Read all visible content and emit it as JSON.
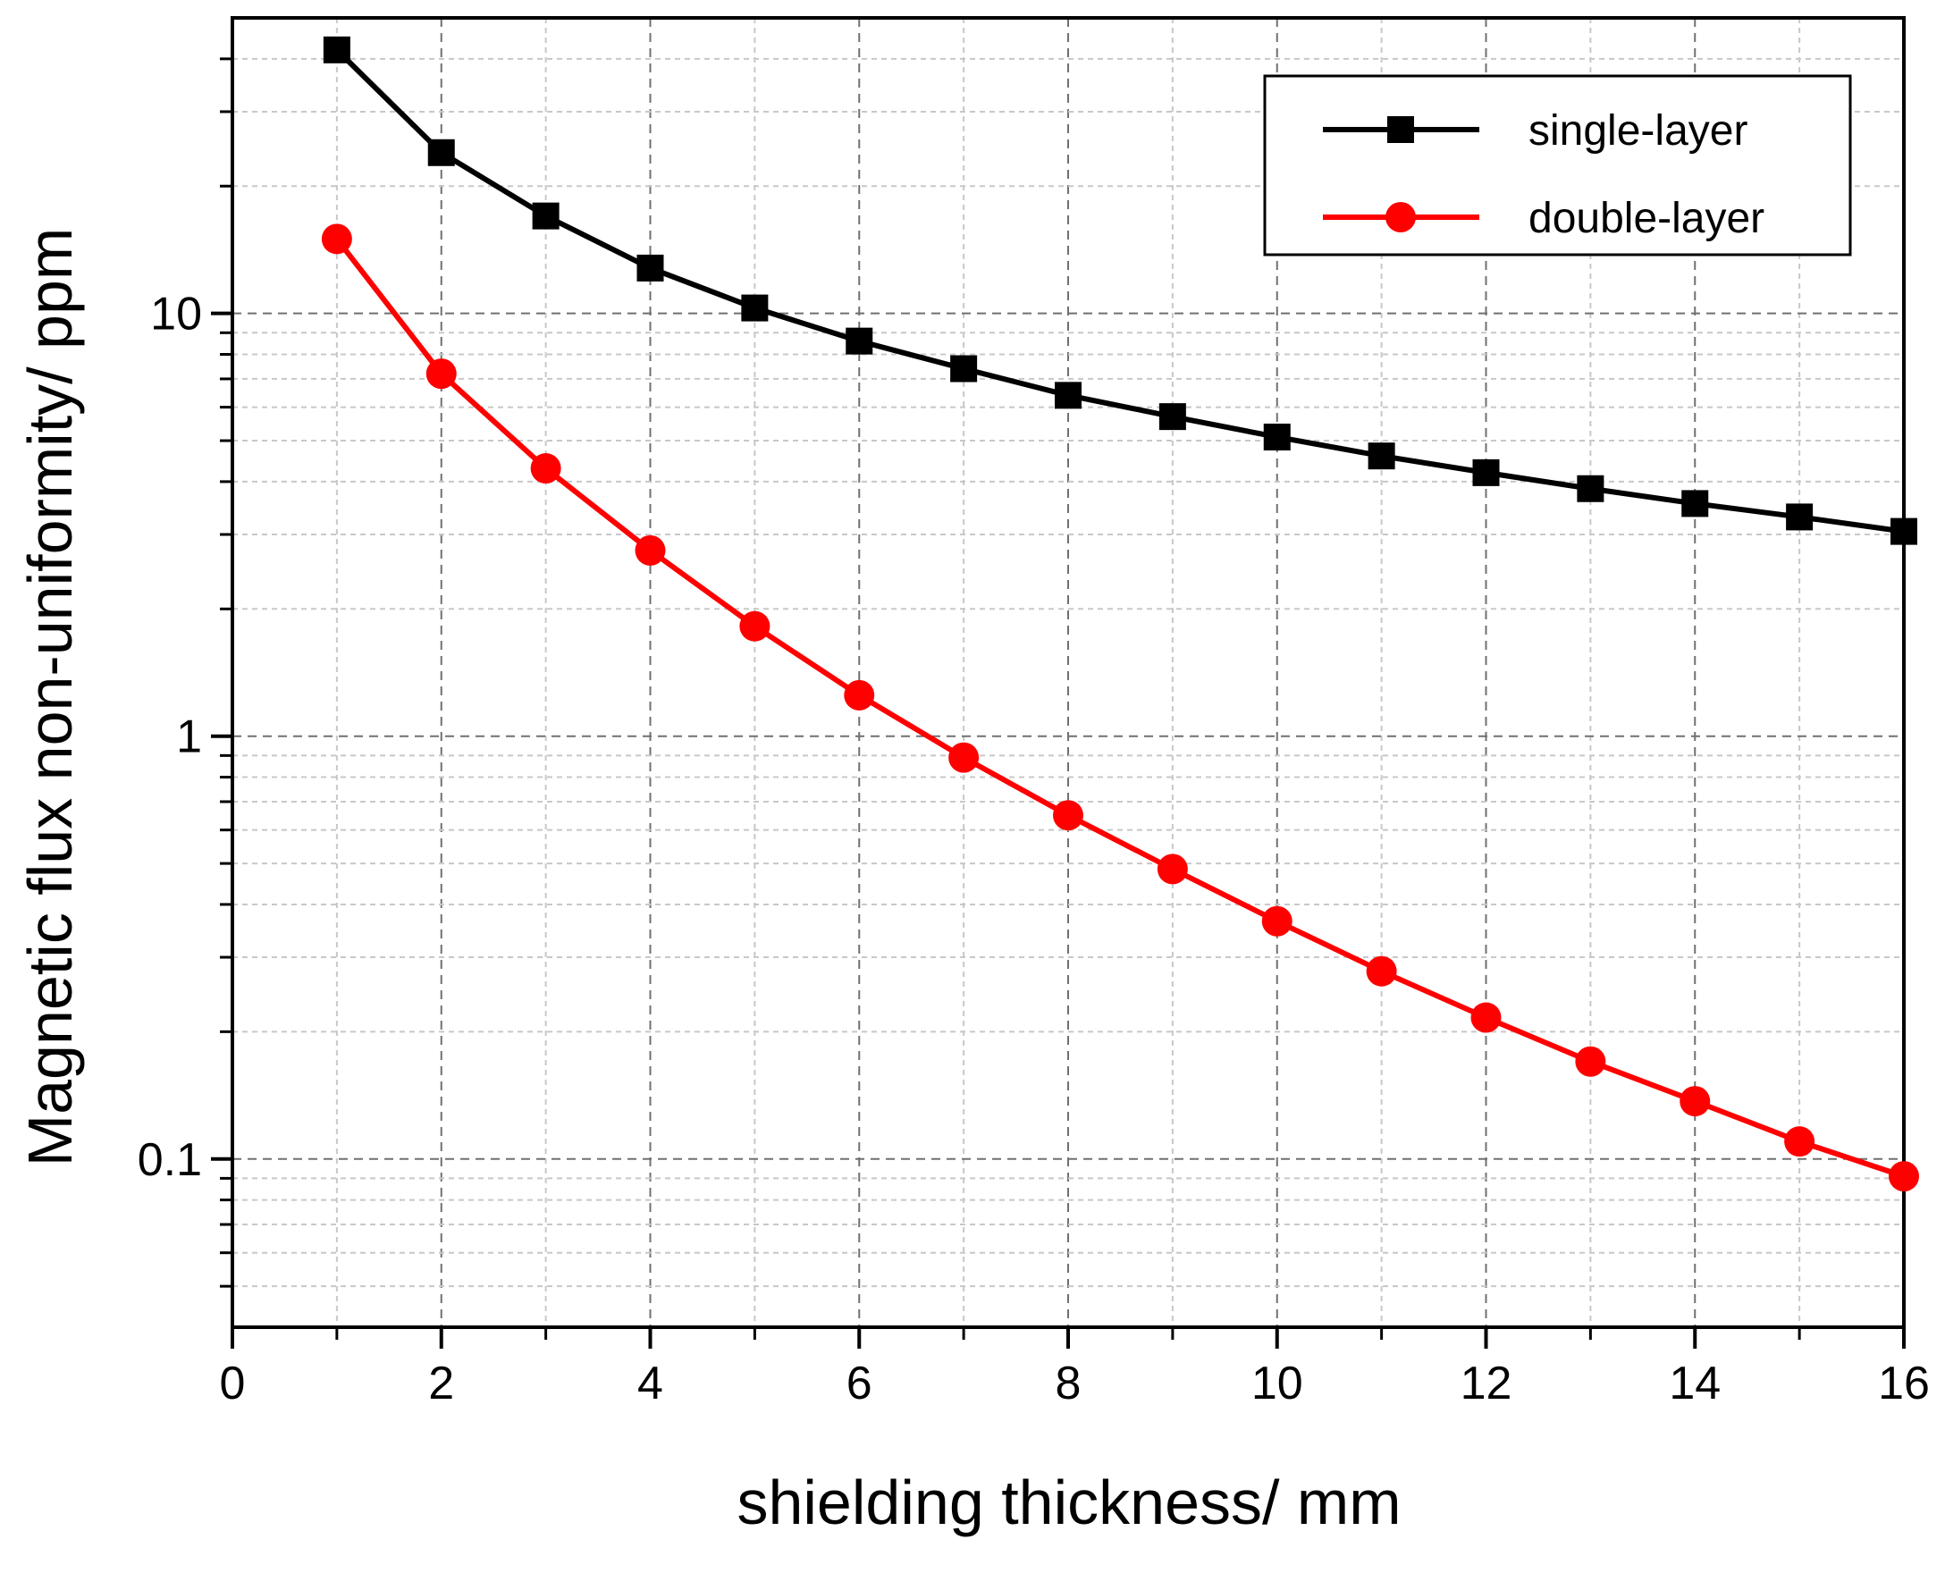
{
  "chart_data": {
    "type": "line",
    "title": "",
    "xlabel": "shielding thickness/ mm",
    "ylabel": "Magnetic flux non-uniformity/ ppm",
    "xlim": [
      0,
      16
    ],
    "ylim": [
      0.04,
      50
    ],
    "yscale": "log",
    "grid": true,
    "legend_position": "top-right",
    "x_ticks": [
      0,
      2,
      4,
      6,
      8,
      10,
      12,
      14,
      16
    ],
    "y_ticks": [
      0.1,
      1,
      10
    ],
    "x_tick_labels": [
      "0",
      "2",
      "4",
      "6",
      "8",
      "10",
      "12",
      "14",
      "16"
    ],
    "y_tick_labels": [
      "0.1",
      "1",
      "10"
    ],
    "x": [
      1,
      2,
      3,
      4,
      5,
      6,
      7,
      8,
      9,
      10,
      11,
      12,
      13,
      14,
      15,
      16
    ],
    "series": [
      {
        "name": "single-layer",
        "color": "#000000",
        "marker": "square",
        "values": [
          42,
          24,
          17,
          12.8,
          10.3,
          8.6,
          7.4,
          6.4,
          5.7,
          5.1,
          4.6,
          4.2,
          3.85,
          3.55,
          3.3,
          3.05
        ]
      },
      {
        "name": "double-layer",
        "color": "#ff0000",
        "marker": "circle",
        "values": [
          15,
          7.2,
          4.3,
          2.75,
          1.82,
          1.25,
          0.89,
          0.65,
          0.485,
          0.365,
          0.278,
          0.216,
          0.17,
          0.137,
          0.11,
          0.091
        ]
      }
    ]
  }
}
